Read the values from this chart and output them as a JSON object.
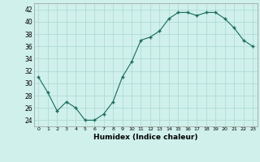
{
  "x": [
    0,
    1,
    2,
    3,
    4,
    5,
    6,
    7,
    8,
    9,
    10,
    11,
    12,
    13,
    14,
    15,
    16,
    17,
    18,
    19,
    20,
    21,
    22,
    23
  ],
  "y": [
    31,
    28.5,
    25.5,
    27,
    26,
    24,
    24,
    25,
    27,
    31,
    33.5,
    37,
    37.5,
    38.5,
    40.5,
    41.5,
    41.5,
    41,
    41.5,
    41.5,
    40.5,
    39,
    37,
    36
  ],
  "line_color": "#1a6b5a",
  "marker_color": "#1a6b5a",
  "bg_color": "#cff0eb",
  "grid_color": "#aad8d0",
  "xlabel": "Humidex (Indice chaleur)",
  "xlabel_fontsize": 6.5,
  "ylabel_ticks": [
    24,
    26,
    28,
    30,
    32,
    34,
    36,
    38,
    40,
    42
  ],
  "xtick_labels": [
    "0",
    "1",
    "2",
    "3",
    "4",
    "5",
    "6",
    "7",
    "8",
    "9",
    "10",
    "11",
    "12",
    "13",
    "14",
    "15",
    "16",
    "17",
    "18",
    "19",
    "20",
    "21",
    "22",
    "23"
  ],
  "ylim": [
    23,
    43
  ],
  "xlim": [
    -0.5,
    23.5
  ]
}
